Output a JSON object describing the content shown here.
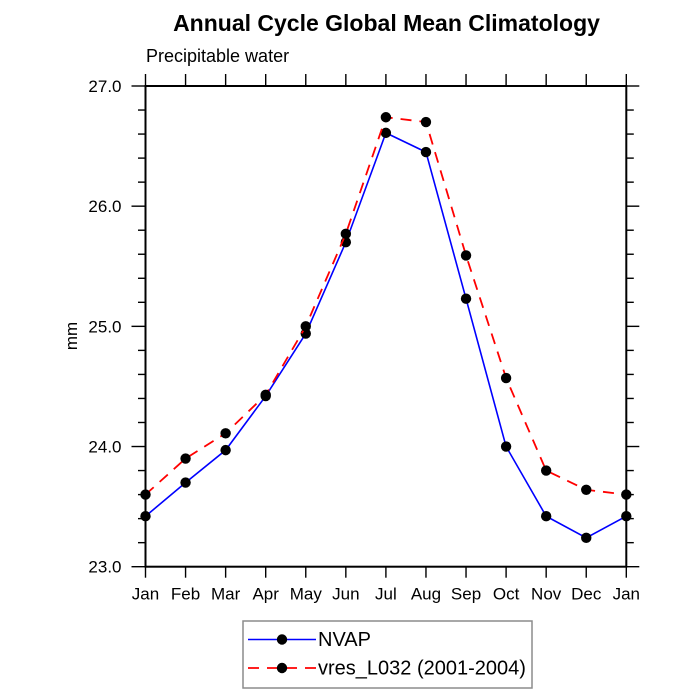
{
  "chart_data": {
    "type": "line",
    "title": "Annual Cycle Global Mean Climatology",
    "subtitle": "Precipitable water",
    "ylabel": "mm",
    "x_categories": [
      "Jan",
      "Feb",
      "Mar",
      "Apr",
      "May",
      "Jun",
      "Jul",
      "Aug",
      "Sep",
      "Oct",
      "Nov",
      "Dec",
      "Jan"
    ],
    "ylim": [
      23.0,
      27.0
    ],
    "y_major_step": 1.0,
    "y_minor_step": 0.2,
    "y_tick_labels": [
      "23.0",
      "24.0",
      "25.0",
      "26.0",
      "27.0"
    ],
    "grid": false,
    "legend_position": "bottom-center",
    "marker": {
      "shape": "circle",
      "color": "#000000"
    },
    "series": [
      {
        "name": "NVAP",
        "color": "#0000ff",
        "line_style": "solid",
        "values": [
          23.42,
          23.7,
          23.97,
          24.42,
          24.94,
          25.7,
          26.61,
          26.45,
          25.23,
          24.0,
          23.42,
          23.24,
          23.42
        ]
      },
      {
        "name": "vres_L032 (2001-2004)",
        "color": "#ff0000",
        "line_style": "dashed",
        "values": [
          23.6,
          23.9,
          24.11,
          24.43,
          25.0,
          25.77,
          26.74,
          26.7,
          25.59,
          24.57,
          23.8,
          23.64,
          23.6
        ]
      }
    ]
  }
}
